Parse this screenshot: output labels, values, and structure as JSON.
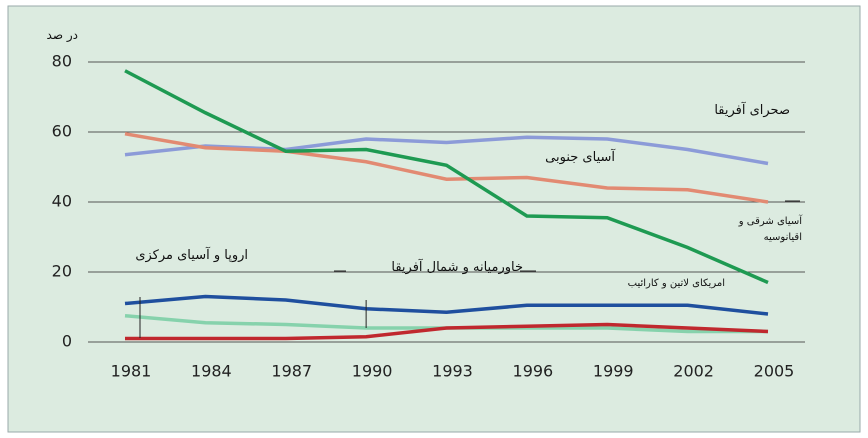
{
  "chart_data": {
    "type": "line",
    "y_label": "در صد",
    "x": [
      1981,
      1984,
      1987,
      1990,
      1993,
      1996,
      1999,
      2002,
      2005
    ],
    "xlim": [
      1981,
      2005
    ],
    "xticks": [
      1981,
      1984,
      1987,
      1990,
      1993,
      1996,
      1999,
      2002,
      2005
    ],
    "ylim": [
      0,
      80
    ],
    "yticks": [
      0,
      20,
      40,
      60,
      80
    ],
    "grid": true,
    "series": [
      {
        "name": "صحرای آفریقا",
        "color": "#8c9bd8",
        "values": [
          53.5,
          56,
          55,
          58,
          57,
          58.5,
          58,
          55,
          51
        ]
      },
      {
        "name": "آسیای جنوبی",
        "color": "#e28a72",
        "values": [
          59.5,
          55.5,
          54.5,
          51.5,
          46.5,
          47,
          44,
          43.5,
          40
        ]
      },
      {
        "name": "آسیای شرقی و اقیانوسیه",
        "color": "#1e9a52",
        "values": [
          77.5,
          65.5,
          54.5,
          55,
          50.5,
          36,
          35.5,
          27,
          17
        ]
      },
      {
        "name": "امریکای لاتین و کارائیب",
        "color": "#1f4f9e",
        "values": [
          11,
          13,
          12,
          9.5,
          8.5,
          10.5,
          10.5,
          10.5,
          8
        ]
      },
      {
        "name": "خاورمیانه و شمال آفریقا",
        "color": "#86d2ac",
        "values": [
          7.5,
          5.5,
          5,
          4,
          4,
          4,
          4,
          3,
          3
        ]
      },
      {
        "name": "اروپا و آسیای مرکزی",
        "color": "#c0282e",
        "values": [
          1,
          1,
          1,
          1.5,
          4,
          4.5,
          5,
          4,
          3
        ]
      }
    ]
  }
}
